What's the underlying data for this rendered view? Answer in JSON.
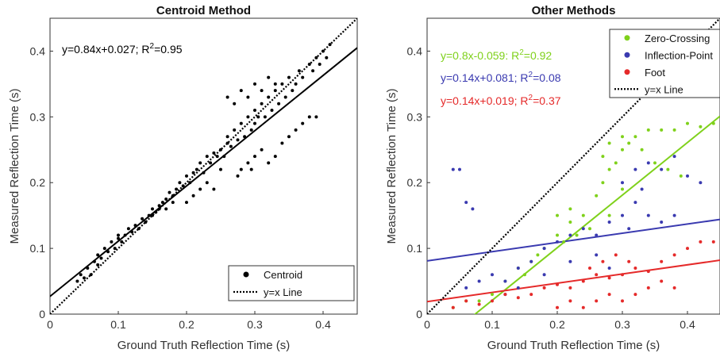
{
  "chart_data": [
    {
      "type": "scatter",
      "title": "Centroid Method",
      "xlabel": "Ground Truth Reflection Time (s)",
      "ylabel": "Measured Reflection Time (s)",
      "xlim": [
        0,
        0.45
      ],
      "ylim": [
        0,
        0.45
      ],
      "xticks": [
        "0",
        "0.1",
        "0.2",
        "0.3",
        "0.4"
      ],
      "yticks": [
        "0",
        "0.1",
        "0.2",
        "0.3",
        "0.4"
      ],
      "legend": "bottom-right",
      "series": [
        {
          "name": "Centroid",
          "kind": "points",
          "color": "#000000",
          "points": [
            [
              0.04,
              0.05
            ],
            [
              0.045,
              0.06
            ],
            [
              0.05,
              0.055
            ],
            [
              0.055,
              0.07
            ],
            [
              0.06,
              0.06
            ],
            [
              0.065,
              0.08
            ],
            [
              0.07,
              0.075
            ],
            [
              0.07,
              0.09
            ],
            [
              0.075,
              0.085
            ],
            [
              0.08,
              0.1
            ],
            [
              0.085,
              0.095
            ],
            [
              0.09,
              0.11
            ],
            [
              0.095,
              0.1
            ],
            [
              0.1,
              0.115
            ],
            [
              0.1,
              0.12
            ],
            [
              0.105,
              0.11
            ],
            [
              0.11,
              0.12
            ],
            [
              0.115,
              0.13
            ],
            [
              0.12,
              0.125
            ],
            [
              0.125,
              0.135
            ],
            [
              0.13,
              0.13
            ],
            [
              0.135,
              0.145
            ],
            [
              0.14,
              0.14
            ],
            [
              0.145,
              0.15
            ],
            [
              0.15,
              0.16
            ],
            [
              0.155,
              0.155
            ],
            [
              0.16,
              0.165
            ],
            [
              0.165,
              0.17
            ],
            [
              0.17,
              0.175
            ],
            [
              0.175,
              0.185
            ],
            [
              0.18,
              0.18
            ],
            [
              0.185,
              0.19
            ],
            [
              0.19,
              0.2
            ],
            [
              0.195,
              0.195
            ],
            [
              0.2,
              0.21
            ],
            [
              0.205,
              0.2
            ],
            [
              0.21,
              0.215
            ],
            [
              0.215,
              0.22
            ],
            [
              0.22,
              0.23
            ],
            [
              0.225,
              0.215
            ],
            [
              0.23,
              0.24
            ],
            [
              0.235,
              0.23
            ],
            [
              0.24,
              0.245
            ],
            [
              0.245,
              0.24
            ],
            [
              0.25,
              0.25
            ],
            [
              0.255,
              0.24
            ],
            [
              0.26,
              0.26
            ],
            [
              0.26,
              0.27
            ],
            [
              0.265,
              0.255
            ],
            [
              0.27,
              0.28
            ],
            [
              0.275,
              0.265
            ],
            [
              0.28,
              0.29
            ],
            [
              0.285,
              0.27
            ],
            [
              0.29,
              0.3
            ],
            [
              0.295,
              0.28
            ],
            [
              0.3,
              0.31
            ],
            [
              0.3,
              0.29
            ],
            [
              0.305,
              0.3
            ],
            [
              0.31,
              0.32
            ],
            [
              0.315,
              0.3
            ],
            [
              0.32,
              0.33
            ],
            [
              0.325,
              0.31
            ],
            [
              0.33,
              0.34
            ],
            [
              0.335,
              0.32
            ],
            [
              0.34,
              0.35
            ],
            [
              0.345,
              0.33
            ],
            [
              0.35,
              0.36
            ],
            [
              0.355,
              0.34
            ],
            [
              0.36,
              0.35
            ],
            [
              0.365,
              0.37
            ],
            [
              0.37,
              0.36
            ],
            [
              0.38,
              0.38
            ],
            [
              0.385,
              0.37
            ],
            [
              0.39,
              0.39
            ],
            [
              0.395,
              0.38
            ],
            [
              0.4,
              0.4
            ],
            [
              0.405,
              0.39
            ],
            [
              0.41,
              0.41
            ],
            [
              0.275,
              0.21
            ],
            [
              0.28,
              0.22
            ],
            [
              0.29,
              0.23
            ],
            [
              0.295,
              0.22
            ],
            [
              0.3,
              0.24
            ],
            [
              0.31,
              0.25
            ],
            [
              0.32,
              0.23
            ],
            [
              0.33,
              0.24
            ],
            [
              0.34,
              0.26
            ],
            [
              0.35,
              0.27
            ],
            [
              0.36,
              0.28
            ],
            [
              0.37,
              0.29
            ],
            [
              0.38,
              0.3
            ],
            [
              0.39,
              0.3
            ],
            [
              0.26,
              0.33
            ],
            [
              0.27,
              0.32
            ],
            [
              0.28,
              0.34
            ],
            [
              0.29,
              0.33
            ],
            [
              0.3,
              0.35
            ],
            [
              0.31,
              0.34
            ],
            [
              0.32,
              0.36
            ],
            [
              0.33,
              0.35
            ],
            [
              0.2,
              0.17
            ],
            [
              0.21,
              0.18
            ],
            [
              0.22,
              0.19
            ],
            [
              0.23,
              0.2
            ],
            [
              0.24,
              0.19
            ],
            [
              0.25,
              0.22
            ],
            [
              0.15,
              0.15
            ],
            [
              0.16,
              0.16
            ],
            [
              0.17,
              0.16
            ],
            [
              0.18,
              0.17
            ]
          ]
        },
        {
          "name": "",
          "kind": "fit",
          "slope": 0.84,
          "intercept": 0.027,
          "color": "#000000"
        },
        {
          "name": "y=x Line",
          "kind": "identity",
          "color": "#000000"
        }
      ],
      "annotations": [
        {
          "text": "y=0.84x+0.027; R",
          "sup": "2",
          "tail": "=0.95",
          "color": "#000000"
        }
      ]
    },
    {
      "type": "scatter",
      "title": "Other Methods",
      "xlabel": "Ground Truth Reflection Time (s)",
      "ylabel": "Measured Reflection Time (s)",
      "xlim": [
        0,
        0.45
      ],
      "ylim": [
        0,
        0.45
      ],
      "xticks": [
        "0",
        "0.1",
        "0.2",
        "0.3",
        "0.4"
      ],
      "yticks": [
        "0",
        "0.1",
        "0.2",
        "0.3",
        "0.4"
      ],
      "legend": "top-right",
      "series": [
        {
          "name": "Zero-Crossing",
          "kind": "points",
          "color": "#7fd11b",
          "points": [
            [
              0.04,
              0.01
            ],
            [
              0.06,
              0.02
            ],
            [
              0.08,
              0.02
            ],
            [
              0.1,
              0.03
            ],
            [
              0.12,
              0.05
            ],
            [
              0.14,
              0.07
            ],
            [
              0.16,
              0.08
            ],
            [
              0.18,
              0.1
            ],
            [
              0.2,
              0.12
            ],
            [
              0.22,
              0.14
            ],
            [
              0.24,
              0.15
            ],
            [
              0.26,
              0.18
            ],
            [
              0.27,
              0.2
            ],
            [
              0.28,
              0.22
            ],
            [
              0.29,
              0.23
            ],
            [
              0.3,
              0.25
            ],
            [
              0.31,
              0.26
            ],
            [
              0.32,
              0.27
            ],
            [
              0.34,
              0.28
            ],
            [
              0.36,
              0.28
            ],
            [
              0.38,
              0.28
            ],
            [
              0.4,
              0.29
            ],
            [
              0.42,
              0.285
            ],
            [
              0.44,
              0.29
            ],
            [
              0.27,
              0.24
            ],
            [
              0.28,
              0.26
            ],
            [
              0.3,
              0.27
            ],
            [
              0.33,
              0.25
            ],
            [
              0.35,
              0.23
            ],
            [
              0.37,
              0.22
            ],
            [
              0.39,
              0.21
            ],
            [
              0.2,
              0.15
            ],
            [
              0.22,
              0.16
            ],
            [
              0.25,
              0.13
            ],
            [
              0.28,
              0.15
            ],
            [
              0.3,
              0.19
            ],
            [
              0.15,
              0.06
            ],
            [
              0.17,
              0.09
            ],
            [
              0.21,
              0.11
            ],
            [
              0.23,
              0.12
            ]
          ]
        },
        {
          "name": "Inflection-Point",
          "kind": "points",
          "color": "#3a3ab0",
          "points": [
            [
              0.04,
              0.22
            ],
            [
              0.05,
              0.22
            ],
            [
              0.06,
              0.17
            ],
            [
              0.07,
              0.16
            ],
            [
              0.06,
              0.04
            ],
            [
              0.08,
              0.05
            ],
            [
              0.1,
              0.06
            ],
            [
              0.12,
              0.05
            ],
            [
              0.14,
              0.07
            ],
            [
              0.16,
              0.08
            ],
            [
              0.18,
              0.1
            ],
            [
              0.2,
              0.11
            ],
            [
              0.22,
              0.12
            ],
            [
              0.24,
              0.13
            ],
            [
              0.26,
              0.12
            ],
            [
              0.28,
              0.14
            ],
            [
              0.3,
              0.15
            ],
            [
              0.32,
              0.17
            ],
            [
              0.34,
              0.15
            ],
            [
              0.36,
              0.14
            ],
            [
              0.38,
              0.15
            ],
            [
              0.4,
              0.21
            ],
            [
              0.42,
              0.2
            ],
            [
              0.3,
              0.2
            ],
            [
              0.32,
              0.22
            ],
            [
              0.34,
              0.23
            ],
            [
              0.36,
              0.22
            ],
            [
              0.38,
              0.24
            ],
            [
              0.14,
              0.04
            ],
            [
              0.18,
              0.06
            ],
            [
              0.22,
              0.08
            ],
            [
              0.26,
              0.09
            ],
            [
              0.28,
              0.07
            ],
            [
              0.31,
              0.13
            ],
            [
              0.33,
              0.19
            ],
            [
              0.12,
              0.03
            ]
          ]
        },
        {
          "name": "Foot",
          "kind": "points",
          "color": "#e52a2a",
          "points": [
            [
              0.04,
              0.01
            ],
            [
              0.06,
              0.02
            ],
            [
              0.08,
              0.015
            ],
            [
              0.1,
              0.02
            ],
            [
              0.12,
              0.03
            ],
            [
              0.14,
              0.025
            ],
            [
              0.16,
              0.03
            ],
            [
              0.18,
              0.04
            ],
            [
              0.2,
              0.045
            ],
            [
              0.22,
              0.04
            ],
            [
              0.24,
              0.05
            ],
            [
              0.26,
              0.06
            ],
            [
              0.28,
              0.055
            ],
            [
              0.3,
              0.06
            ],
            [
              0.32,
              0.07
            ],
            [
              0.34,
              0.065
            ],
            [
              0.36,
              0.08
            ],
            [
              0.38,
              0.09
            ],
            [
              0.4,
              0.1
            ],
            [
              0.42,
              0.11
            ],
            [
              0.44,
              0.11
            ],
            [
              0.2,
              0.01
            ],
            [
              0.22,
              0.02
            ],
            [
              0.24,
              0.01
            ],
            [
              0.26,
              0.02
            ],
            [
              0.28,
              0.03
            ],
            [
              0.3,
              0.02
            ],
            [
              0.32,
              0.03
            ],
            [
              0.34,
              0.04
            ],
            [
              0.36,
              0.05
            ],
            [
              0.38,
              0.04
            ],
            [
              0.25,
              0.07
            ],
            [
              0.27,
              0.08
            ],
            [
              0.29,
              0.09
            ],
            [
              0.31,
              0.08
            ]
          ]
        },
        {
          "name": "",
          "kind": "fit",
          "slope": 0.8,
          "intercept": -0.059,
          "color": "#7fd11b"
        },
        {
          "name": "",
          "kind": "fit",
          "slope": 0.14,
          "intercept": 0.081,
          "color": "#3a3ab0"
        },
        {
          "name": "",
          "kind": "fit",
          "slope": 0.14,
          "intercept": 0.019,
          "color": "#e52a2a"
        },
        {
          "name": "y=x Line",
          "kind": "identity",
          "color": "#000000"
        }
      ],
      "annotations": [
        {
          "text": "y=0.8x-0.059: R",
          "sup": "2",
          "tail": "=0.92",
          "color": "#7fd11b"
        },
        {
          "text": "y=0.14x+0.081; R",
          "sup": "2",
          "tail": "=0.08",
          "color": "#3a3ab0"
        },
        {
          "text": "y=0.14x+0.019; R",
          "sup": "2",
          "tail": "=0.37",
          "color": "#e52a2a"
        }
      ]
    }
  ]
}
